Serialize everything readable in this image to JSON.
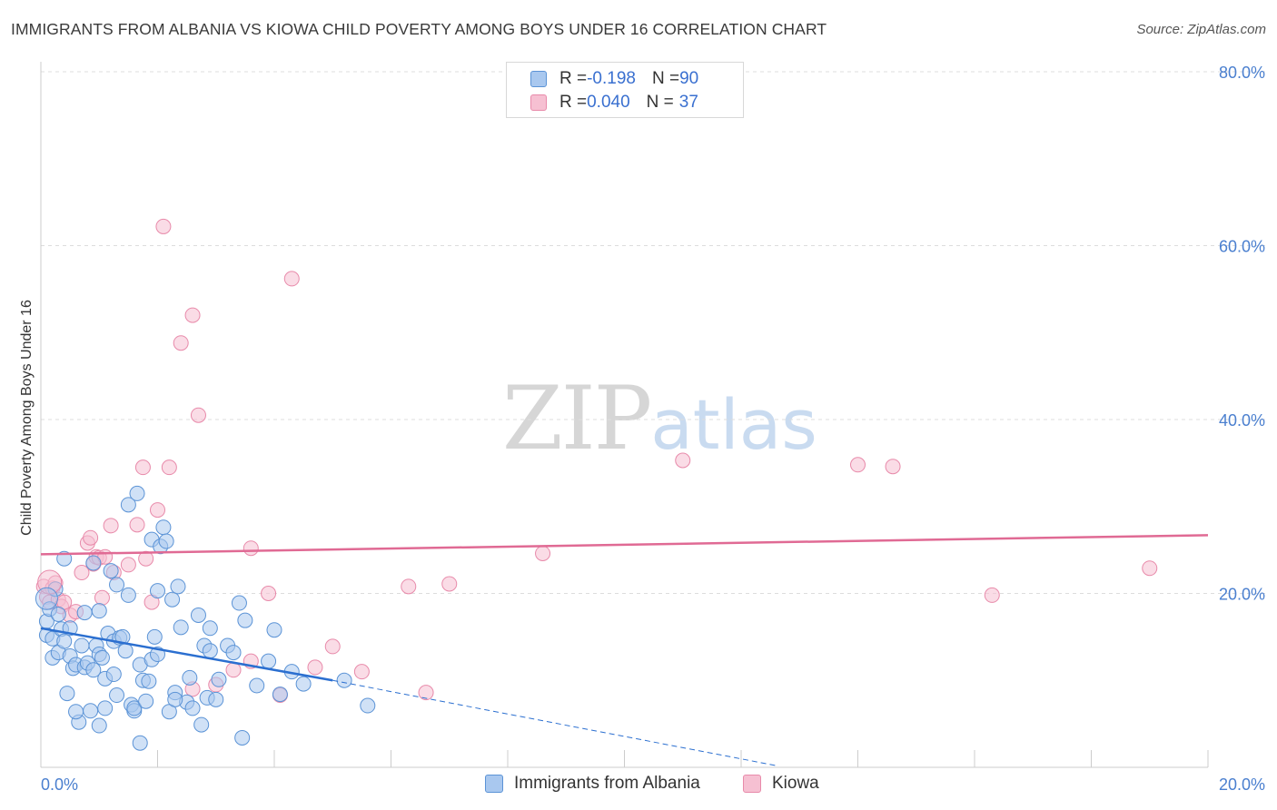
{
  "title": "IMMIGRANTS FROM ALBANIA VS KIOWA CHILD POVERTY AMONG BOYS UNDER 16 CORRELATION CHART",
  "source": "Source: ZipAtlas.com",
  "watermark": {
    "zip": "ZIP",
    "atlas": "atlas"
  },
  "legend": {
    "rows": [
      {
        "r_label": "R = ",
        "r_value": "-0.198",
        "n_label": "N = ",
        "n_value": "90"
      },
      {
        "r_label": "R = ",
        "r_value": "0.040",
        "n_label": "N = ",
        "n_value": "37"
      }
    ]
  },
  "colors": {
    "blue_fill": "#a9c8ef",
    "blue_stroke": "#5b93d6",
    "blue_line": "#2b6fd0",
    "pink_fill": "#f6c0d2",
    "pink_stroke": "#e88aaa",
    "pink_line": "#e06a94",
    "tick_text": "#4a7fcf",
    "grid": "#dddddd"
  },
  "chart_data": {
    "type": "scatter",
    "title": "IMMIGRANTS FROM ALBANIA VS KIOWA CHILD POVERTY AMONG BOYS UNDER 16 CORRELATION CHART",
    "xlabel": "",
    "ylabel": "Child Poverty Among Boys Under 16",
    "xlim": [
      0,
      20
    ],
    "ylim": [
      0,
      80
    ],
    "x_tick_labels": [
      {
        "value": 0,
        "label": "0.0%"
      },
      {
        "value": 20,
        "label": "20.0%"
      }
    ],
    "y_tick_labels": [
      {
        "value": 20,
        "label": "20.0%"
      },
      {
        "value": 40,
        "label": "40.0%"
      },
      {
        "value": 60,
        "label": "60.0%"
      },
      {
        "value": 80,
        "label": "80.0%"
      }
    ],
    "x_minor_ticks": [
      2,
      4,
      6,
      8,
      10,
      12,
      14,
      16,
      18,
      20
    ],
    "grid": true,
    "legend_position": "top-center",
    "series": [
      {
        "name": "Immigrants from Albania",
        "color": "#a9c8ef",
        "R": -0.198,
        "N": 90,
        "trend": {
          "x0": 0,
          "y0": 16.0,
          "x1": 5.0,
          "y1": 10.0,
          "dash_to_x": 12.6,
          "dash_to_y": 0.2
        },
        "points": [
          [
            0.1,
            15.2
          ],
          [
            0.1,
            16.8
          ],
          [
            0.15,
            18.2
          ],
          [
            0.2,
            14.8
          ],
          [
            0.2,
            12.6
          ],
          [
            0.25,
            20.5
          ],
          [
            0.3,
            13.2
          ],
          [
            0.3,
            17.6
          ],
          [
            0.35,
            15.9
          ],
          [
            0.4,
            24.0
          ],
          [
            0.4,
            14.5
          ],
          [
            0.45,
            8.5
          ],
          [
            0.5,
            16.0
          ],
          [
            0.5,
            12.8
          ],
          [
            0.55,
            11.4
          ],
          [
            0.6,
            11.8
          ],
          [
            0.65,
            5.2
          ],
          [
            0.7,
            14.0
          ],
          [
            0.75,
            17.8
          ],
          [
            0.75,
            11.5
          ],
          [
            0.8,
            12.0
          ],
          [
            0.85,
            6.5
          ],
          [
            0.9,
            11.2
          ],
          [
            0.9,
            23.5
          ],
          [
            0.95,
            14.0
          ],
          [
            1.0,
            18.0
          ],
          [
            1.0,
            13.0
          ],
          [
            1.05,
            12.6
          ],
          [
            1.1,
            10.2
          ],
          [
            1.1,
            6.8
          ],
          [
            1.15,
            15.4
          ],
          [
            1.2,
            22.6
          ],
          [
            1.25,
            14.5
          ],
          [
            1.25,
            10.7
          ],
          [
            1.3,
            8.3
          ],
          [
            1.3,
            21.0
          ],
          [
            1.35,
            14.9
          ],
          [
            1.4,
            15.0
          ],
          [
            1.45,
            13.4
          ],
          [
            1.5,
            19.8
          ],
          [
            1.5,
            30.2
          ],
          [
            1.55,
            7.2
          ],
          [
            1.6,
            6.5
          ],
          [
            1.6,
            6.8
          ],
          [
            1.65,
            31.5
          ],
          [
            1.7,
            11.8
          ],
          [
            1.7,
            2.8
          ],
          [
            1.75,
            10.0
          ],
          [
            1.8,
            7.6
          ],
          [
            1.85,
            9.9
          ],
          [
            1.9,
            26.2
          ],
          [
            1.9,
            12.4
          ],
          [
            1.95,
            15.0
          ],
          [
            2.0,
            13.0
          ],
          [
            2.0,
            20.3
          ],
          [
            2.05,
            25.4
          ],
          [
            2.1,
            27.6
          ],
          [
            2.15,
            26.0
          ],
          [
            2.2,
            6.4
          ],
          [
            2.25,
            19.3
          ],
          [
            2.3,
            8.6
          ],
          [
            2.35,
            20.8
          ],
          [
            2.4,
            16.1
          ],
          [
            2.5,
            7.5
          ],
          [
            2.55,
            10.3
          ],
          [
            2.6,
            6.8
          ],
          [
            2.7,
            17.5
          ],
          [
            2.75,
            4.9
          ],
          [
            2.8,
            14.0
          ],
          [
            2.85,
            8.0
          ],
          [
            2.9,
            13.4
          ],
          [
            2.9,
            16.0
          ],
          [
            3.0,
            7.8
          ],
          [
            3.05,
            10.1
          ],
          [
            3.2,
            14.0
          ],
          [
            3.3,
            13.2
          ],
          [
            3.4,
            18.9
          ],
          [
            3.45,
            3.4
          ],
          [
            3.5,
            16.9
          ],
          [
            3.7,
            9.4
          ],
          [
            3.9,
            12.2
          ],
          [
            4.0,
            15.8
          ],
          [
            4.1,
            8.4
          ],
          [
            4.3,
            11.0
          ],
          [
            4.5,
            9.6
          ],
          [
            5.2,
            10.0
          ],
          [
            5.6,
            7.1
          ],
          [
            0.6,
            6.4
          ],
          [
            1.0,
            4.8
          ],
          [
            2.3,
            7.8
          ]
        ]
      },
      {
        "name": "Kiowa",
        "color": "#f6c0d2",
        "R": 0.04,
        "N": 37,
        "trend": {
          "x0": 0,
          "y0": 24.5,
          "x1": 20.0,
          "y1": 26.7
        },
        "points": [
          [
            0.05,
            20.8
          ],
          [
            0.1,
            19.6
          ],
          [
            0.15,
            19.0
          ],
          [
            0.2,
            20.6
          ],
          [
            0.25,
            21.2
          ],
          [
            0.3,
            19.3
          ],
          [
            0.35,
            18.5
          ],
          [
            0.4,
            19.0
          ],
          [
            0.5,
            17.5
          ],
          [
            0.6,
            17.9
          ],
          [
            0.7,
            22.4
          ],
          [
            0.8,
            25.8
          ],
          [
            0.85,
            26.4
          ],
          [
            0.9,
            23.4
          ],
          [
            0.95,
            24.2
          ],
          [
            1.0,
            24.1
          ],
          [
            1.05,
            19.5
          ],
          [
            1.1,
            24.2
          ],
          [
            1.2,
            27.8
          ],
          [
            1.25,
            22.4
          ],
          [
            1.5,
            23.3
          ],
          [
            1.65,
            27.9
          ],
          [
            1.75,
            34.5
          ],
          [
            1.8,
            24.0
          ],
          [
            1.9,
            19.0
          ],
          [
            2.0,
            29.6
          ],
          [
            2.1,
            62.2
          ],
          [
            2.2,
            34.5
          ],
          [
            2.4,
            48.8
          ],
          [
            2.6,
            52.0
          ],
          [
            2.7,
            40.5
          ],
          [
            3.0,
            9.5
          ],
          [
            3.3,
            11.2
          ],
          [
            3.6,
            25.2
          ],
          [
            3.9,
            20.0
          ],
          [
            4.3,
            56.2
          ],
          [
            5.5,
            11.0
          ]
        ],
        "extra_points": [
          [
            6.3,
            20.8
          ],
          [
            7.0,
            21.1
          ],
          [
            8.6,
            24.6
          ],
          [
            6.6,
            8.6
          ],
          [
            11.0,
            35.3
          ],
          [
            14.0,
            34.8
          ],
          [
            14.6,
            34.6
          ],
          [
            16.3,
            19.8
          ],
          [
            19.0,
            22.9
          ],
          [
            4.7,
            11.5
          ],
          [
            5.0,
            13.9
          ],
          [
            4.1,
            8.3
          ],
          [
            3.6,
            12.2
          ],
          [
            2.6,
            9.0
          ]
        ]
      }
    ]
  },
  "bottom_legend": [
    {
      "label": "Immigrants from Albania"
    },
    {
      "label": "Kiowa"
    }
  ]
}
